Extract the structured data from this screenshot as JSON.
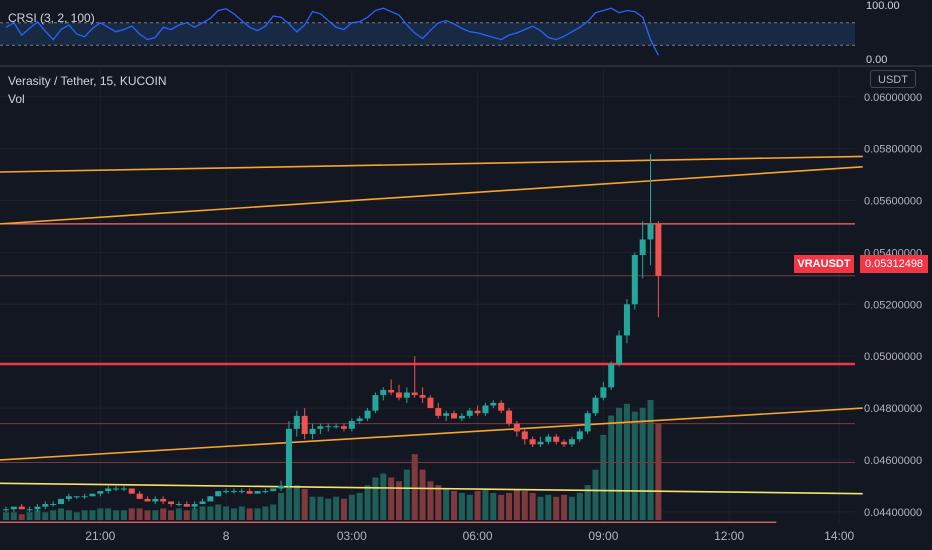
{
  "indicator": {
    "label": "CRSI (3, 2, 100)",
    "upper_label": "100.00",
    "lower_label": "0.00",
    "line_color": "#2962ff",
    "band_color": "#1e3a5f"
  },
  "header": {
    "symbol_title": "Verasity / Tether, 15, KUCOIN",
    "vol_label": "Vol"
  },
  "currency": "USDT",
  "last_price": {
    "ticker": "VRAUSDT",
    "value": "0.05312498",
    "color": "#f23645"
  },
  "chart_data": {
    "type": "candlestick",
    "title": "Verasity / Tether, 15, KUCOIN",
    "y_axis_ticks": [
      "0.06000000",
      "0.05800000",
      "0.05600000",
      "0.05400000",
      "0.05200000",
      "0.05000000",
      "0.04800000",
      "0.04600000",
      "0.04400000"
    ],
    "y_tick_values": [
      0.06,
      0.058,
      0.056,
      0.054,
      0.052,
      0.05,
      0.048,
      0.046,
      0.044
    ],
    "ylim": [
      0.0433,
      0.0608
    ],
    "x_axis_ticks": [
      "21:00",
      "8",
      "03:00",
      "06:00",
      "09:00",
      "12:00",
      "14:00"
    ],
    "x_tick_index": [
      12,
      28,
      44,
      60,
      76,
      92,
      106
    ],
    "colors": {
      "up": "#26a69a",
      "down": "#ef5350",
      "vol_up": "#1f5f5a",
      "vol_down": "#7f3a3d"
    },
    "candles": [
      [
        0.0441,
        0.0442,
        0.044,
        0.0441
      ],
      [
        0.0441,
        0.0442,
        0.044,
        0.0442
      ],
      [
        0.0442,
        0.0443,
        0.0441,
        0.0441
      ],
      [
        0.0441,
        0.0442,
        0.044,
        0.0441
      ],
      [
        0.0441,
        0.0443,
        0.044,
        0.0442
      ],
      [
        0.0442,
        0.0444,
        0.0441,
        0.0443
      ],
      [
        0.0443,
        0.0444,
        0.0442,
        0.0443
      ],
      [
        0.0443,
        0.0445,
        0.0443,
        0.0445
      ],
      [
        0.0445,
        0.0447,
        0.0444,
        0.0446
      ],
      [
        0.0446,
        0.0446,
        0.0445,
        0.0446
      ],
      [
        0.0446,
        0.0447,
        0.0445,
        0.0446
      ],
      [
        0.0446,
        0.0447,
        0.0446,
        0.0447
      ],
      [
        0.0447,
        0.0448,
        0.0446,
        0.0448
      ],
      [
        0.0448,
        0.045,
        0.0447,
        0.0449
      ],
      [
        0.0449,
        0.045,
        0.0448,
        0.0449
      ],
      [
        0.0449,
        0.045,
        0.0448,
        0.0449
      ],
      [
        0.0449,
        0.0449,
        0.0447,
        0.0447
      ],
      [
        0.0447,
        0.0448,
        0.0445,
        0.0445
      ],
      [
        0.0445,
        0.0446,
        0.0444,
        0.0444
      ],
      [
        0.0444,
        0.0446,
        0.0443,
        0.0445
      ],
      [
        0.0445,
        0.0446,
        0.0443,
        0.0444
      ],
      [
        0.0444,
        0.0444,
        0.0442,
        0.0443
      ],
      [
        0.0443,
        0.0444,
        0.0442,
        0.0443
      ],
      [
        0.0443,
        0.0444,
        0.0442,
        0.0442
      ],
      [
        0.0442,
        0.0444,
        0.0441,
        0.0443
      ],
      [
        0.0443,
        0.0445,
        0.0443,
        0.0444
      ],
      [
        0.0444,
        0.0446,
        0.0444,
        0.0446
      ],
      [
        0.0446,
        0.0448,
        0.0446,
        0.0448
      ],
      [
        0.0448,
        0.0449,
        0.0447,
        0.0448
      ],
      [
        0.0448,
        0.0449,
        0.0447,
        0.0448
      ],
      [
        0.0448,
        0.0449,
        0.0447,
        0.0448
      ],
      [
        0.0448,
        0.0449,
        0.0447,
        0.0447
      ],
      [
        0.0447,
        0.0448,
        0.0447,
        0.0448
      ],
      [
        0.0448,
        0.0449,
        0.0447,
        0.0448
      ],
      [
        0.0448,
        0.0449,
        0.0448,
        0.0449
      ],
      [
        0.0449,
        0.0452,
        0.0448,
        0.045
      ],
      [
        0.045,
        0.0475,
        0.0449,
        0.0472
      ],
      [
        0.0472,
        0.0479,
        0.0469,
        0.0477
      ],
      [
        0.0477,
        0.048,
        0.0468,
        0.047
      ],
      [
        0.047,
        0.0474,
        0.0468,
        0.0472
      ],
      [
        0.0472,
        0.0474,
        0.047,
        0.0473
      ],
      [
        0.0473,
        0.0474,
        0.0471,
        0.0473
      ],
      [
        0.0473,
        0.0474,
        0.0472,
        0.0473
      ],
      [
        0.0473,
        0.0474,
        0.0471,
        0.0472
      ],
      [
        0.0472,
        0.0476,
        0.0471,
        0.0475
      ],
      [
        0.0475,
        0.0477,
        0.0474,
        0.0476
      ],
      [
        0.0476,
        0.048,
        0.0475,
        0.0479
      ],
      [
        0.0479,
        0.0486,
        0.0478,
        0.0485
      ],
      [
        0.0485,
        0.0488,
        0.0483,
        0.0487
      ],
      [
        0.0487,
        0.0491,
        0.0485,
        0.0486
      ],
      [
        0.0486,
        0.0489,
        0.0483,
        0.0484
      ],
      [
        0.0484,
        0.0488,
        0.0482,
        0.0486
      ],
      [
        0.0486,
        0.05,
        0.0484,
        0.0485
      ],
      [
        0.0485,
        0.0488,
        0.0482,
        0.0484
      ],
      [
        0.0484,
        0.0485,
        0.048,
        0.048
      ],
      [
        0.048,
        0.0482,
        0.0476,
        0.0477
      ],
      [
        0.0477,
        0.0479,
        0.0475,
        0.0478
      ],
      [
        0.0478,
        0.0479,
        0.0476,
        0.0476
      ],
      [
        0.0476,
        0.0478,
        0.0475,
        0.0477
      ],
      [
        0.0477,
        0.048,
        0.0476,
        0.0479
      ],
      [
        0.0479,
        0.0481,
        0.0477,
        0.0478
      ],
      [
        0.0478,
        0.0482,
        0.0477,
        0.0481
      ],
      [
        0.0481,
        0.0483,
        0.048,
        0.0482
      ],
      [
        0.0482,
        0.0483,
        0.0478,
        0.0479
      ],
      [
        0.0479,
        0.048,
        0.0473,
        0.0474
      ],
      [
        0.0474,
        0.0475,
        0.0469,
        0.0471
      ],
      [
        0.0471,
        0.0472,
        0.0466,
        0.0468
      ],
      [
        0.0468,
        0.0469,
        0.0465,
        0.0466
      ],
      [
        0.0466,
        0.0469,
        0.0465,
        0.0467
      ],
      [
        0.0467,
        0.047,
        0.0466,
        0.0469
      ],
      [
        0.0469,
        0.047,
        0.0466,
        0.0467
      ],
      [
        0.0467,
        0.0468,
        0.0465,
        0.0466
      ],
      [
        0.0466,
        0.0469,
        0.0465,
        0.0468
      ],
      [
        0.0468,
        0.0472,
        0.0467,
        0.0471
      ],
      [
        0.0471,
        0.0479,
        0.047,
        0.0478
      ],
      [
        0.0478,
        0.0485,
        0.0477,
        0.0484
      ],
      [
        0.0484,
        0.049,
        0.0483,
        0.0488
      ],
      [
        0.0488,
        0.0498,
        0.0487,
        0.0497
      ],
      [
        0.0497,
        0.051,
        0.0496,
        0.0508
      ],
      [
        0.0508,
        0.0522,
        0.0505,
        0.052
      ],
      [
        0.052,
        0.054,
        0.0518,
        0.0539
      ],
      [
        0.0539,
        0.0552,
        0.053,
        0.0545
      ],
      [
        0.0545,
        0.0578,
        0.0535,
        0.0551
      ],
      [
        0.0551,
        0.0552,
        0.0515,
        0.0531
      ]
    ],
    "volumes": [
      4,
      4,
      3,
      4,
      5,
      4,
      5,
      6,
      5,
      4,
      5,
      5,
      6,
      6,
      5,
      5,
      6,
      6,
      5,
      5,
      6,
      5,
      6,
      5,
      6,
      7,
      7,
      8,
      7,
      6,
      7,
      6,
      6,
      7,
      8,
      14,
      22,
      18,
      16,
      12,
      12,
      11,
      12,
      11,
      13,
      14,
      18,
      22,
      24,
      22,
      20,
      26,
      34,
      26,
      20,
      18,
      16,
      15,
      14,
      13,
      15,
      16,
      14,
      13,
      14,
      16,
      15,
      14,
      12,
      13,
      12,
      13,
      12,
      14,
      18,
      26,
      44,
      54,
      58,
      60,
      56,
      58,
      62,
      50
    ],
    "crsi": [
      62,
      70,
      48,
      60,
      72,
      55,
      40,
      58,
      66,
      50,
      45,
      60,
      70,
      62,
      54,
      58,
      64,
      50,
      40,
      44,
      62,
      58,
      66,
      70,
      62,
      70,
      78,
      92,
      95,
      86,
      74,
      62,
      56,
      64,
      82,
      80,
      68,
      54,
      66,
      90,
      86,
      74,
      62,
      58,
      70,
      72,
      80,
      92,
      96,
      90,
      84,
      66,
      52,
      42,
      56,
      70,
      74,
      68,
      60,
      54,
      52,
      48,
      44,
      40,
      48,
      52,
      58,
      64,
      56,
      44,
      40,
      46,
      54,
      62,
      72,
      88,
      92,
      96,
      88,
      92,
      90,
      80,
      40,
      12
    ]
  },
  "trend_lines": [
    {
      "color": "#f7a52c",
      "from": [
        0,
        0.0571
      ],
      "to": [
        109,
        0.0577
      ]
    },
    {
      "color": "#f7a52c",
      "from": [
        0,
        0.0551
      ],
      "to": [
        109,
        0.0573
      ]
    },
    {
      "color": "#f7a52c",
      "from": [
        0,
        0.046
      ],
      "to": [
        109,
        0.048
      ]
    },
    {
      "color": "#f7e36a",
      "from": [
        0,
        0.0451
      ],
      "to": [
        109,
        0.0447
      ]
    }
  ],
  "levels": [
    {
      "price": 0.0551,
      "color": "#f26d6d",
      "width": 1.2
    },
    {
      "price": 0.0531,
      "color": "#7a3b40",
      "width": 1
    },
    {
      "price": 0.0497,
      "color": "#f23645",
      "width": 2.5
    },
    {
      "price": 0.0474,
      "color": "#7a3b40",
      "width": 1
    },
    {
      "price": 0.0459,
      "color": "#7a3b40",
      "width": 1
    },
    {
      "price": 0.0436,
      "color": "#f26d6d",
      "width": 1.2,
      "end_index": 98
    }
  ]
}
